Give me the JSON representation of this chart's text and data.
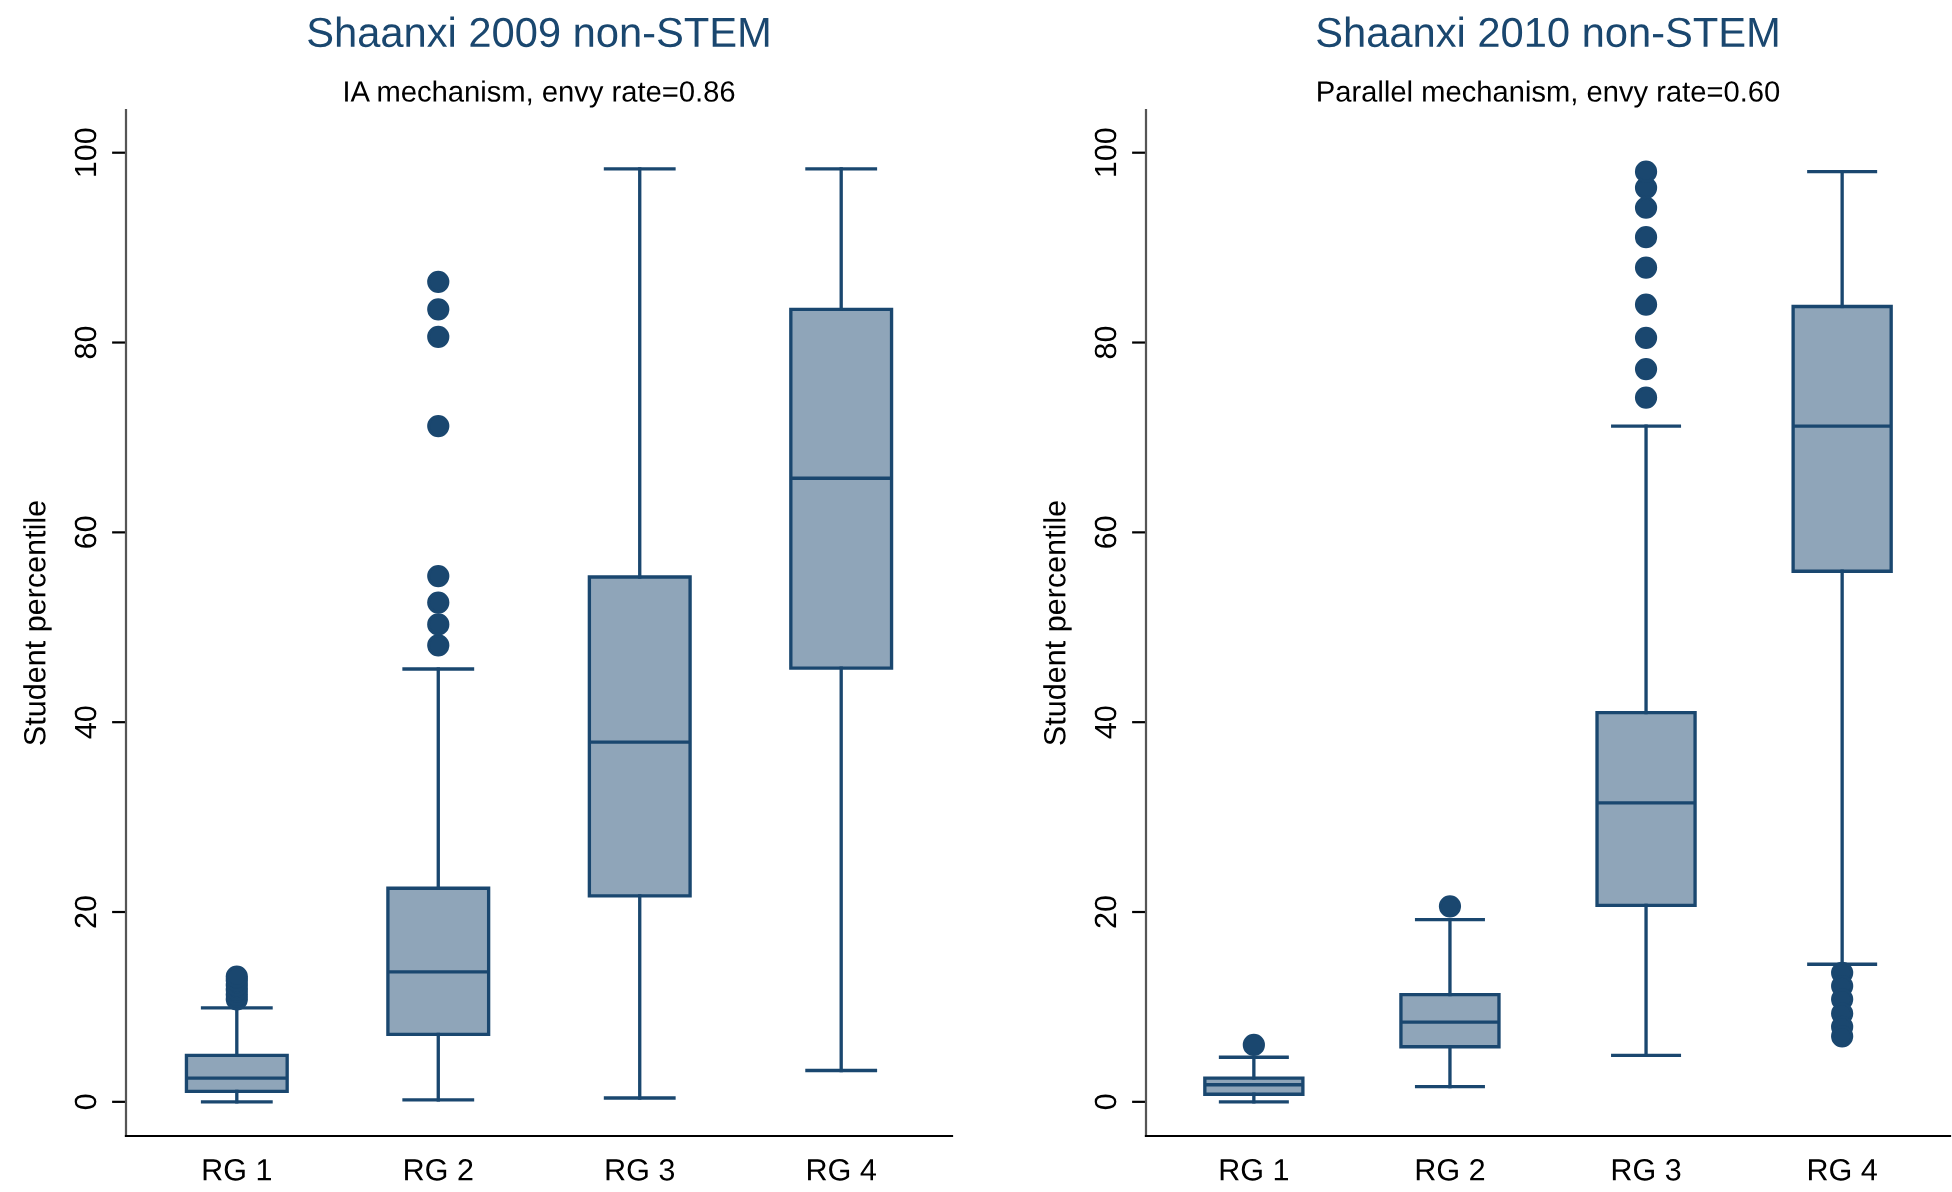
{
  "chart_data": [
    {
      "type": "box",
      "title": "Shaanxi 2009 non-STEM",
      "subtitle": "IA mechanism, envy rate=0.86",
      "ylabel": "Student percentile",
      "categories": [
        "RG 1",
        "RG 2",
        "RG 3",
        "RG 4"
      ],
      "color": "#8fa5b9",
      "marker": "circle",
      "boxes": [
        {
          "low": 0,
          "q1": 1.1,
          "median": 2.5,
          "q3": 4.9,
          "high": 9.9,
          "outliers": [
            10.8,
            11.3,
            11.8,
            12.3,
            12.8,
            13.2
          ]
        },
        {
          "low": 0.2,
          "q1": 7.1,
          "median": 13.7,
          "q3": 22.5,
          "high": 45.6,
          "outliers": [
            48.1,
            50.3,
            52.6,
            55.4,
            71.2,
            80.6,
            83.5,
            86.4
          ]
        },
        {
          "low": 0.4,
          "q1": 21.7,
          "median": 37.9,
          "q3": 55.3,
          "high": 98.3
        },
        {
          "low": 3.3,
          "q1": 45.7,
          "median": 65.7,
          "q3": 83.5,
          "high": 98.3
        }
      ],
      "ylim": [
        -3.6,
        104.5
      ],
      "yticks": [
        0,
        20,
        40,
        60,
        80,
        100
      ]
    },
    {
      "type": "box",
      "title": "Shaanxi 2010 non-STEM",
      "subtitle": "Parallel mechanism, envy rate=0.60",
      "ylabel": "Student percentile",
      "categories": [
        "RG 1",
        "RG 2",
        "RG 3",
        "RG 4"
      ],
      "color": "#8fa5b9",
      "marker": "circle",
      "boxes": [
        {
          "low": 0,
          "q1": 0.8,
          "median": 1.8,
          "q3": 2.5,
          "high": 4.7,
          "outliers": [
            6.0
          ]
        },
        {
          "low": 1.6,
          "q1": 5.8,
          "median": 8.4,
          "q3": 11.3,
          "high": 19.2,
          "outliers": [
            20.6
          ]
        },
        {
          "low": 4.9,
          "q1": 20.7,
          "median": 31.5,
          "q3": 41.0,
          "high": 71.2,
          "outliers": [
            74.2,
            77.2,
            80.5,
            84.0,
            87.9,
            91.1,
            94.2,
            96.3,
            98.0
          ]
        },
        {
          "low": 14.5,
          "q1": 55.9,
          "median": 71.2,
          "q3": 83.8,
          "high": 98.0,
          "outliers": [
            13.6,
            12.2,
            10.8,
            9.3,
            7.9,
            6.9
          ]
        }
      ],
      "ylim": [
        -3.6,
        104.5
      ],
      "yticks": [
        0,
        20,
        40,
        60,
        80,
        100
      ]
    }
  ]
}
